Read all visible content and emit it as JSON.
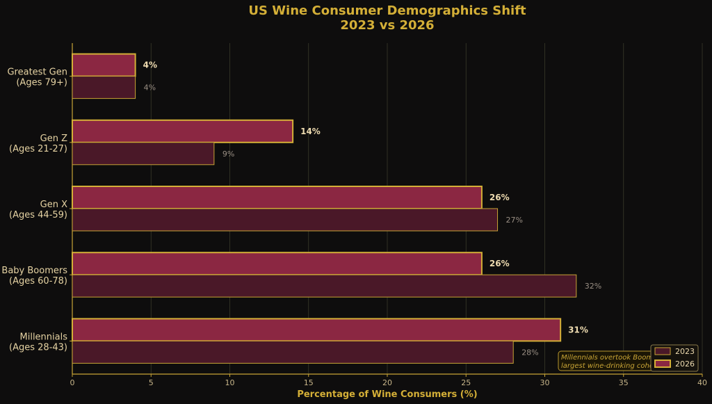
{
  "chart_data": {
    "type": "bar",
    "orientation": "horizontal",
    "title": "US Wine Consumer Demographics Shift",
    "subtitle": "2023 vs 2026",
    "xlabel": "Percentage of Wine Consumers (%)",
    "ylabel": "",
    "xlim": [
      0,
      40
    ],
    "xticks": [
      0,
      5,
      10,
      15,
      20,
      25,
      30,
      35,
      40
    ],
    "grid": true,
    "legend_position": "bottom-right",
    "categories": [
      {
        "line1": "Greatest Gen",
        "line2": "(Ages 79+)"
      },
      {
        "line1": "Gen Z",
        "line2": "(Ages 21-27)"
      },
      {
        "line1": "Gen X",
        "line2": "(Ages 44-59)"
      },
      {
        "line1": "Baby Boomers",
        "line2": "(Ages 60-78)"
      },
      {
        "line1": "Millennials",
        "line2": "(Ages 28-43)"
      }
    ],
    "series": [
      {
        "name": "2023",
        "values": [
          4,
          9,
          27,
          32,
          28
        ],
        "labels": [
          "4%",
          "9%",
          "27%",
          "32%",
          "28%"
        ],
        "color": "#4a1828",
        "edge": "#c9a536"
      },
      {
        "name": "2026",
        "values": [
          4,
          14,
          26,
          26,
          31
        ],
        "labels": [
          "4%",
          "14%",
          "26%",
          "26%",
          "31%"
        ],
        "color": "#8b2742",
        "edge": "#d4af37"
      }
    ],
    "annotation": {
      "line1": "Millennials overtook Boomers as the",
      "line2": "largest wine-drinking cohort"
    }
  },
  "colors": {
    "background": "#0e0d0d",
    "accent": "#d4af37",
    "bar_2023": "#4a1828",
    "bar_2026": "#8b2742"
  }
}
